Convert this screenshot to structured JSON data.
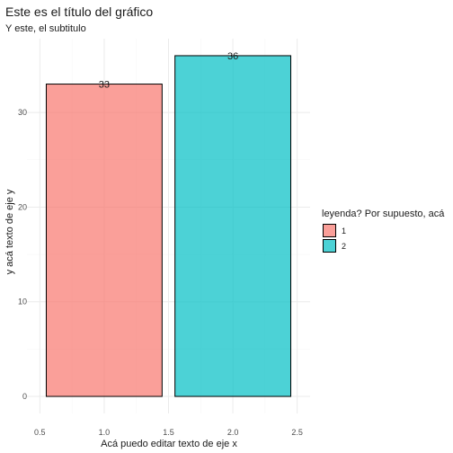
{
  "chart_data": {
    "type": "bar",
    "title": "Este es el título del gráfico",
    "subtitle": "Y este, el subtitulo",
    "xlabel": "Acá puedo editar texto de eje x",
    "ylabel": "y acá texto de eje y",
    "x": [
      1,
      2
    ],
    "values": [
      33,
      36
    ],
    "data_labels": [
      "33",
      "36"
    ],
    "categories": [
      "1",
      "2"
    ],
    "colors": [
      "#F8766D",
      "#00BFC4"
    ],
    "xlim": [
      0.5,
      2.5
    ],
    "ylim": [
      0,
      36
    ],
    "x_ticks": [
      0.5,
      1.0,
      1.5,
      2.0,
      2.5
    ],
    "x_tick_labels": [
      "0.5",
      "1.0",
      "1.5",
      "2.0",
      "2.5"
    ],
    "y_ticks": [
      0,
      10,
      20,
      30
    ],
    "y_tick_labels": [
      "0",
      "10",
      "20",
      "30"
    ],
    "bar_width": 0.9,
    "grid": true,
    "legend": {
      "title": "leyenda? Por supuesto, acá",
      "entries": [
        "1",
        "2"
      ],
      "placement": "right"
    }
  }
}
